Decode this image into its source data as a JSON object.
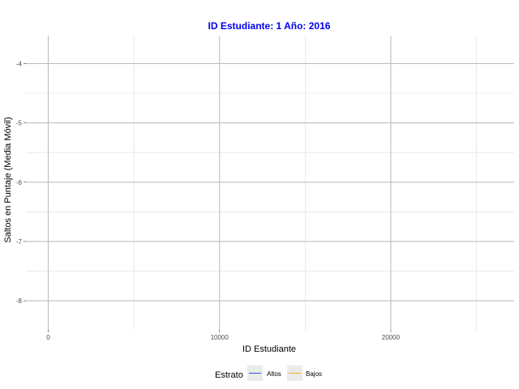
{
  "chart_data": {
    "type": "line",
    "title": "ID Estudiante: 1  Año: 2016",
    "xlabel": "ID Estudiante",
    "ylabel": "Saltos en Puntaje (Media Móvil)",
    "xlim": [
      -1300,
      27200
    ],
    "ylim": [
      -8.49,
      -3.53
    ],
    "x_ticks": [
      0,
      10000,
      20000
    ],
    "x_tick_labels": [
      "0",
      "10000",
      "20000"
    ],
    "x_minor_ticks": [
      5000,
      15000,
      25000
    ],
    "y_ticks": [
      -8,
      -7,
      -6,
      -5,
      -4
    ],
    "y_tick_labels": [
      "-8",
      "-7",
      "-6",
      "-5",
      "-4"
    ],
    "y_minor_ticks": [
      -8.5,
      -7.5,
      -6.5,
      -5.5,
      -4.5,
      -3.5
    ],
    "grid": true,
    "legend": {
      "title": "Estrato",
      "position": "bottom",
      "items": [
        {
          "label": "Altos",
          "color": "#1f5fd6"
        },
        {
          "label": "Bajos",
          "color": "#f2b01e"
        }
      ]
    },
    "series": [
      {
        "name": "Altos",
        "color": "#1f5fd6",
        "x": [],
        "y": []
      },
      {
        "name": "Bajos",
        "color": "#f2b01e",
        "x": [],
        "y": []
      }
    ]
  },
  "colors": {
    "title": "#0000ee",
    "grid_major": "#bebebe",
    "grid_minor": "#dcdcdc",
    "axis_text": "#4d4d4d",
    "legend_key_bg": "#ebebeb"
  }
}
